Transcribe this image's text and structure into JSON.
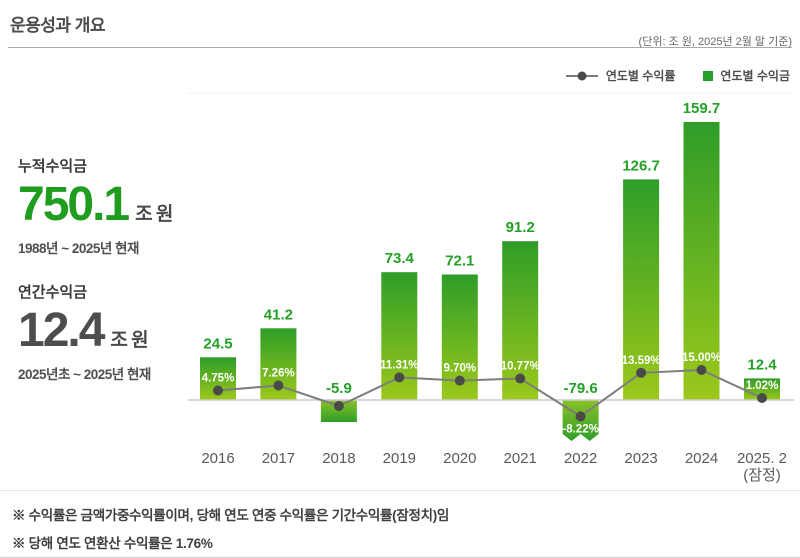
{
  "header": {
    "title": "운용성과 개요",
    "unit_note": "(단위: 조 원, 2025년 2월 말 기준)"
  },
  "legend": {
    "line_label": "연도별 수익률",
    "bar_label": "연도별 수익금"
  },
  "stats": {
    "cumulative": {
      "label": "누적수익금",
      "value": "750.1",
      "unit": "조 원",
      "period": "1988년 ~ 2025년 현재"
    },
    "annual": {
      "label": "연간수익금",
      "value": "12.4",
      "unit": "조 원",
      "period": "2025년초 ~ 2025년 현재"
    }
  },
  "chart_data": {
    "type": "bar",
    "title": "",
    "categories": [
      "2016",
      "2017",
      "2018",
      "2019",
      "2020",
      "2021",
      "2022",
      "2023",
      "2024",
      "2025. 2"
    ],
    "category_sublabels": [
      null,
      null,
      null,
      null,
      null,
      null,
      null,
      null,
      null,
      "(잠정)"
    ],
    "series": [
      {
        "name": "연도별 수익금",
        "type": "bar",
        "unit": "조 원",
        "values": [
          24.5,
          41.2,
          -5.9,
          73.4,
          72.1,
          91.2,
          -79.6,
          126.7,
          159.7,
          12.4
        ]
      },
      {
        "name": "연도별 수익률",
        "type": "line",
        "unit": "%",
        "values": [
          4.75,
          7.26,
          -3.0,
          11.31,
          9.7,
          10.77,
          -8.22,
          13.59,
          15.0,
          1.02
        ],
        "labels": [
          "4.75%",
          "7.26%",
          null,
          "11.31%",
          "9.70%",
          "10.77%",
          "-8.22%",
          "13.59%",
          "15.00%",
          "1.02%"
        ]
      }
    ],
    "value_labels": [
      "24.5",
      "41.2",
      "-5.9",
      "73.4",
      "72.1",
      "91.2",
      "-79.6",
      "126.7",
      "159.7",
      "12.4"
    ],
    "legend_position": "top-right",
    "grid": false,
    "truncated_bars": [
      "2022"
    ],
    "colors": {
      "bar_top": "#2e9d28",
      "bar_bottom": "#9cc81b",
      "neg_top": "#8ac229",
      "neg_bottom": "#2f9e27",
      "line": "#7d7d7d",
      "marker": "#4a4a4a",
      "value_label": "#23a126",
      "pct_label": "#ffffff",
      "axis": "#cccccc",
      "tick_label": "#5a5a5a"
    }
  },
  "footnotes": [
    "※ 수익률은 금액가중수익률이며, 당해 연도 연중 수익률은 기간수익률(잠정치)임",
    "※ 당해 연도 연환산 수익률은 1.76%"
  ]
}
